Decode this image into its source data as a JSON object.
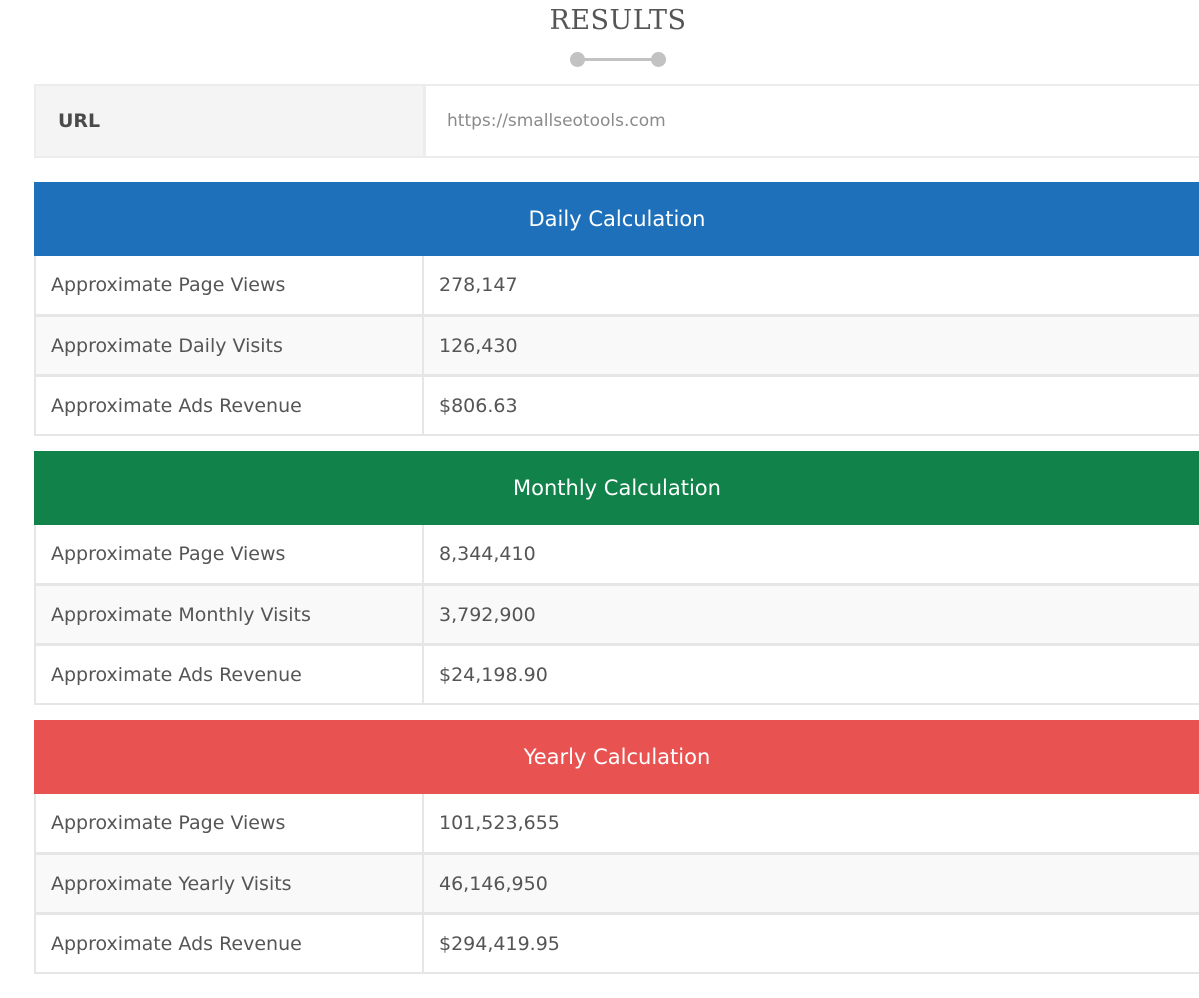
{
  "results": {
    "title": "RESULTS"
  },
  "url_row": {
    "label": "URL",
    "value": "https://smallseotools.com"
  },
  "sections": [
    {
      "title": "Daily Calculation",
      "color": "#1e70ba",
      "rows": [
        {
          "label": "Approximate Page Views",
          "value": "278,147"
        },
        {
          "label": "Approximate Daily Visits",
          "value": "126,430"
        },
        {
          "label": "Approximate Ads Revenue",
          "value": "$806.63"
        }
      ]
    },
    {
      "title": "Monthly Calculation",
      "color": "#10824a",
      "rows": [
        {
          "label": "Approximate Page Views",
          "value": "8,344,410"
        },
        {
          "label": "Approximate Monthly Visits",
          "value": "3,792,900"
        },
        {
          "label": "Approximate Ads Revenue",
          "value": "$24,198.90"
        }
      ]
    },
    {
      "title": "Yearly Calculation",
      "color": "#e85352",
      "rows": [
        {
          "label": "Approximate Page Views",
          "value": "101,523,655"
        },
        {
          "label": "Approximate Yearly Visits",
          "value": "46,146,950"
        },
        {
          "label": "Approximate Ads Revenue",
          "value": "$294,419.95"
        }
      ]
    }
  ]
}
